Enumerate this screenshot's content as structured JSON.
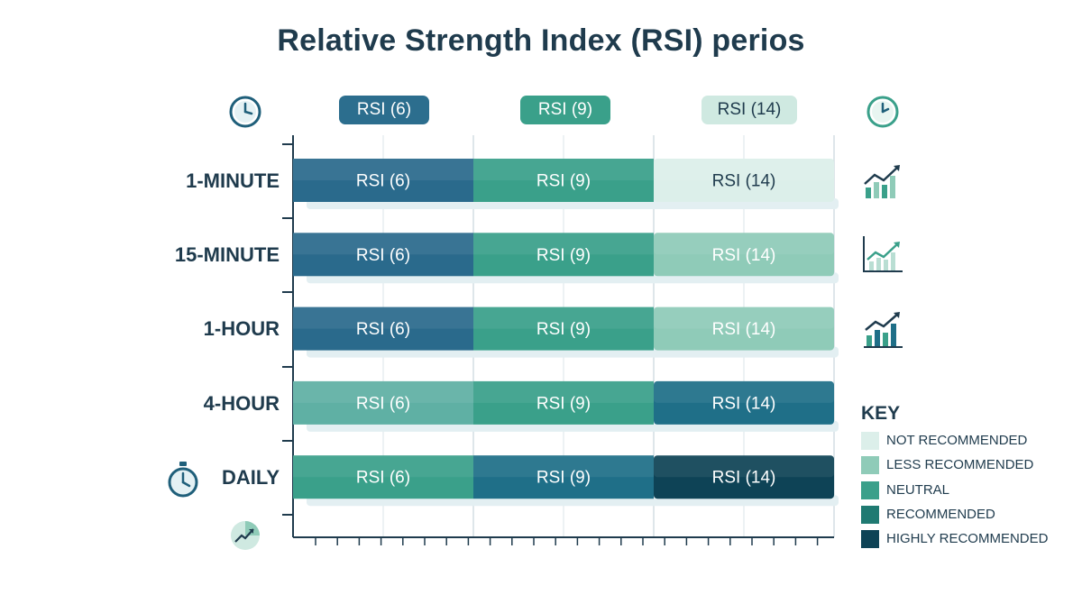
{
  "title": "Relative Strength Index (RSI) perios",
  "chart_data": {
    "type": "table",
    "title": "Relative Strength Index (RSI) perios",
    "columns": [
      "RSI (6)",
      "RSI (9)",
      "RSI (14)"
    ],
    "rows": [
      "1-MINUTE",
      "15-MINUTE",
      "1-HOUR",
      "4-HOUR",
      "DAILY"
    ],
    "cells": [
      [
        {
          "label": "RSI (6)",
          "level": 4
        },
        {
          "label": "RSI (9)",
          "level": 3
        },
        {
          "label": "RSI (14)",
          "level": 1
        }
      ],
      [
        {
          "label": "RSI (6)",
          "level": 4
        },
        {
          "label": "RSI (9)",
          "level": 3
        },
        {
          "label": "RSI (14)",
          "level": 2
        }
      ],
      [
        {
          "label": "RSI (6)",
          "level": 4
        },
        {
          "label": "RSI (9)",
          "level": 3
        },
        {
          "label": "RSI (14)",
          "level": 2
        }
      ],
      [
        {
          "label": "RSI (6)",
          "level": 2
        },
        {
          "label": "RSI (9)",
          "level": 3
        },
        {
          "label": "RSI (14)",
          "level": 4
        }
      ],
      [
        {
          "label": "RSI (6)",
          "level": 3
        },
        {
          "label": "RSI (9)",
          "level": 4
        },
        {
          "label": "RSI (14)",
          "level": 5
        }
      ]
    ],
    "level_colors": {
      "1": "#dcefea",
      "2": "#8fcbb8",
      "3": "#3aa08a",
      "4": "#1f6f88",
      "5": "#0e4356"
    },
    "header_colors": [
      "#2c6e8e",
      "#3aa08a",
      "#cfe9e1"
    ],
    "header_text_colors": [
      "#ffffff",
      "#ffffff",
      "#1f3b4d"
    ],
    "special_colors": {
      "col0_blue": "#2a6a8c",
      "col0_teal_light": "#5fb0a4"
    },
    "legend": {
      "title": "KEY",
      "placement": "right",
      "items": [
        {
          "label": "NOT RECOMMENDED",
          "color": "#dcefea"
        },
        {
          "label": "LESS RECOMMENDED",
          "color": "#8fcbb8"
        },
        {
          "label": "NEUTRAL",
          "color": "#3aa08a"
        },
        {
          "label": "RECOMMENDED",
          "color": "#1f7a72"
        },
        {
          "label": "HIGHLY RECOMMENDED",
          "color": "#0e4356"
        }
      ]
    },
    "grid": true
  },
  "icons": {
    "top_left": "clock-icon",
    "top_right": "clock-icon",
    "row_icons": [
      "bar-chart-trend-icon",
      "line-chart-trend-icon",
      "bar-chart-trend-icon"
    ],
    "daily_left": "stopwatch-icon",
    "bottom_left": "pie-trend-icon"
  }
}
